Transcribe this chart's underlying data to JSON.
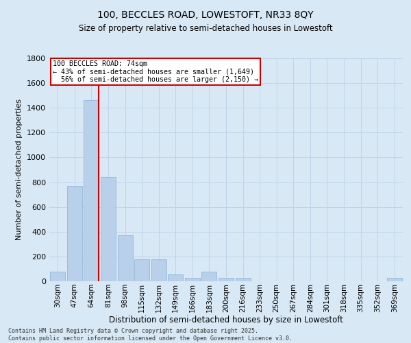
{
  "title_line1": "100, BECCLES ROAD, LOWESTOFT, NR33 8QY",
  "title_line2": "Size of property relative to semi-detached houses in Lowestoft",
  "xlabel": "Distribution of semi-detached houses by size in Lowestoft",
  "ylabel": "Number of semi-detached properties",
  "categories": [
    "30sqm",
    "47sqm",
    "64sqm",
    "81sqm",
    "98sqm",
    "115sqm",
    "132sqm",
    "149sqm",
    "166sqm",
    "183sqm",
    "200sqm",
    "216sqm",
    "233sqm",
    "250sqm",
    "267sqm",
    "284sqm",
    "301sqm",
    "318sqm",
    "335sqm",
    "352sqm",
    "369sqm"
  ],
  "values": [
    75,
    770,
    1460,
    840,
    370,
    175,
    175,
    55,
    30,
    80,
    30,
    25,
    0,
    0,
    0,
    0,
    0,
    0,
    0,
    0,
    25
  ],
  "bar_color": "#b8d0ea",
  "bar_edge_color": "#8ab0d8",
  "grid_color": "#c0d4e8",
  "background_color": "#d8e8f4",
  "vline_color": "#cc0000",
  "vline_pos": 2.42,
  "annotation_text": "100 BECCLES ROAD: 74sqm\n← 43% of semi-detached houses are smaller (1,649)\n  56% of semi-detached houses are larger (2,150) →",
  "annotation_box_color": "#ffffff",
  "annotation_border_color": "#cc0000",
  "ylim": [
    0,
    1800
  ],
  "yticks": [
    0,
    200,
    400,
    600,
    800,
    1000,
    1200,
    1400,
    1600,
    1800
  ],
  "footer_text": "Contains HM Land Registry data © Crown copyright and database right 2025.\nContains public sector information licensed under the Open Government Licence v3.0."
}
